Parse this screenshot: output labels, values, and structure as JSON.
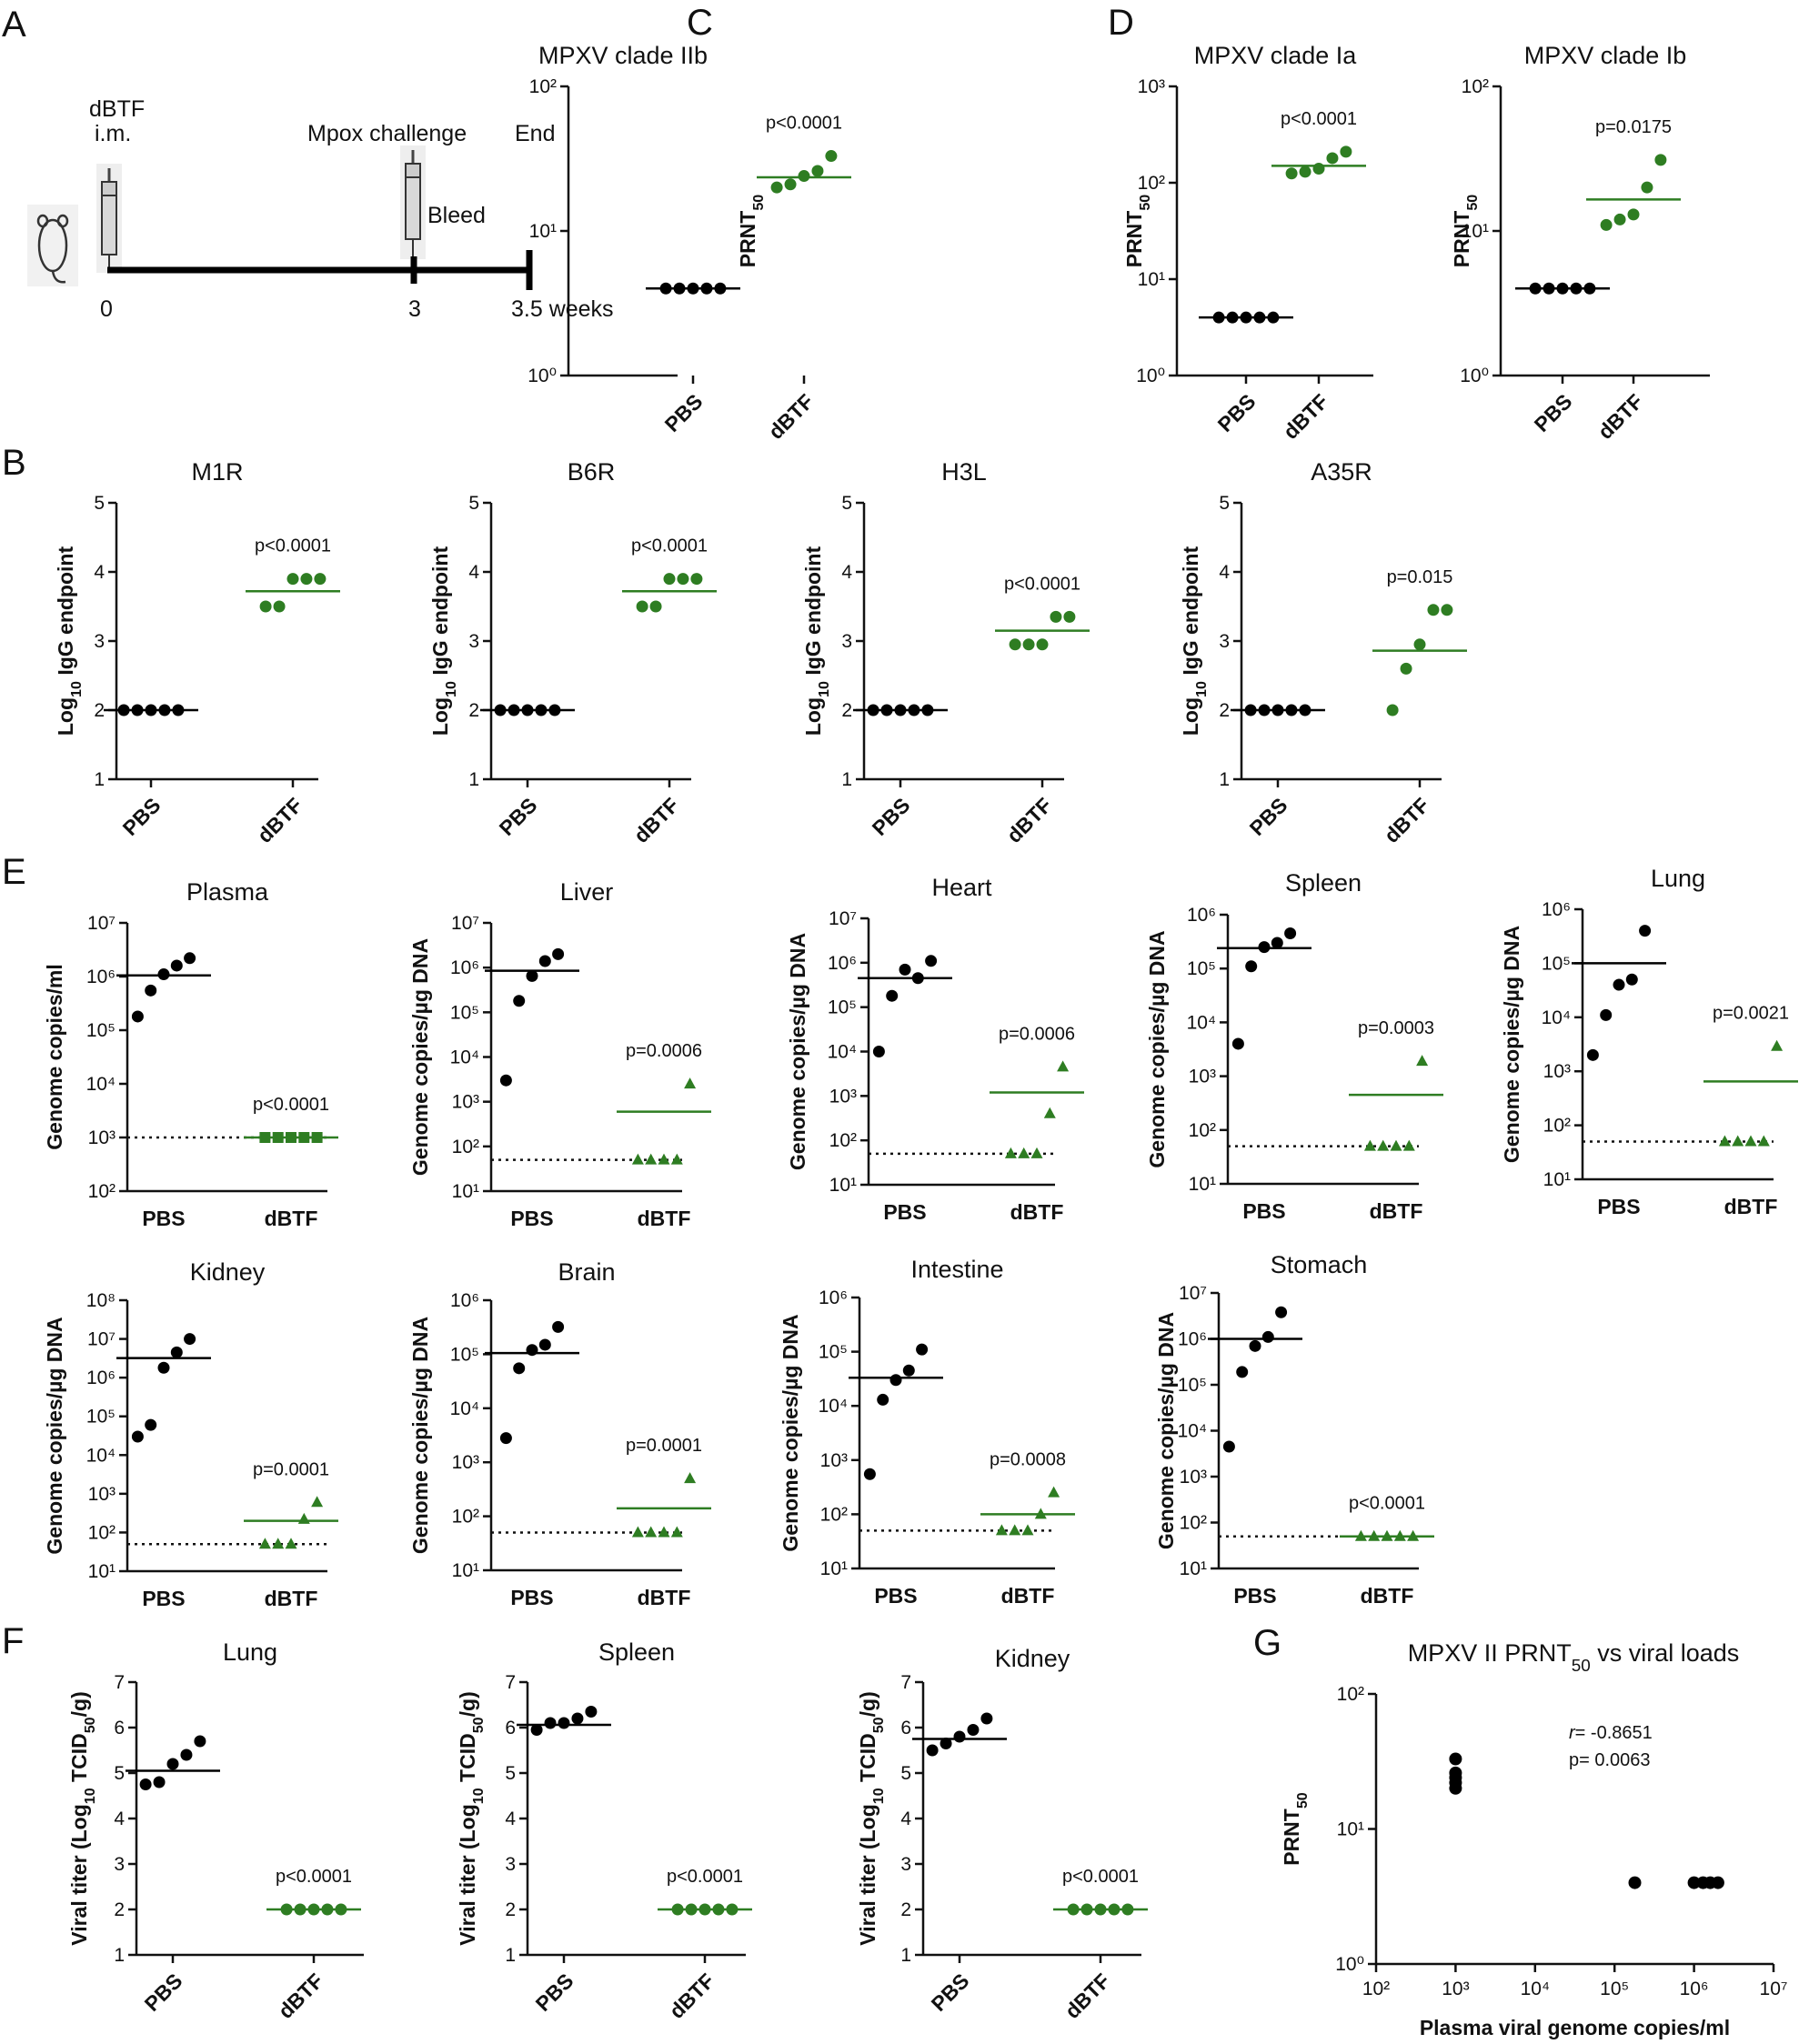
{
  "panel_labels": [
    "A",
    "B",
    "C",
    "D",
    "E",
    "F",
    "G"
  ],
  "timeline": {
    "dose_label_1": "dBTF",
    "dose_label_2": "i.m.",
    "challenge_label": "Mpox challenge",
    "end_label": "End",
    "bleed_label": "Bleed",
    "ticks": [
      "0",
      "3",
      "3.5 weeks"
    ]
  },
  "colors": {
    "pbs": "#000000",
    "dbtf": "#2e7d22"
  },
  "chart_data": [
    {
      "id": "C1",
      "type": "scatter",
      "title": "MPXV clade IIb",
      "ylabel": "PRNT",
      "ylabel_sub": "50",
      "yscale": "log",
      "ylim_exp": [
        0,
        2
      ],
      "categories": [
        "PBS",
        "dBTF"
      ],
      "series": [
        {
          "values": [
            4,
            4,
            4,
            4,
            4
          ],
          "mean": 4
        },
        {
          "values": [
            20,
            21,
            24,
            26,
            33
          ],
          "mean": 23.5
        }
      ],
      "pvalue": "p<0.0001"
    },
    {
      "id": "D1",
      "type": "scatter",
      "title": "MPXV clade Ia",
      "ylabel": "PRNT",
      "ylabel_sub": "50",
      "yscale": "log",
      "ylim_exp": [
        0,
        3
      ],
      "categories": [
        "PBS",
        "dBTF"
      ],
      "series": [
        {
          "values": [
            4,
            4,
            4,
            4,
            4
          ],
          "mean": 4
        },
        {
          "values": [
            125,
            130,
            140,
            180,
            210
          ],
          "mean": 150
        }
      ],
      "pvalue": "p<0.0001"
    },
    {
      "id": "D2",
      "type": "scatter",
      "title": "MPXV clade Ib",
      "ylabel": "PRNT",
      "ylabel_sub": "50",
      "yscale": "log",
      "ylim_exp": [
        0,
        2
      ],
      "categories": [
        "PBS",
        "dBTF"
      ],
      "series": [
        {
          "values": [
            4,
            4,
            4,
            4,
            4
          ],
          "mean": 4
        },
        {
          "values": [
            11,
            12,
            13,
            20,
            31
          ],
          "mean": 16.5
        }
      ],
      "pvalue": "p=0.0175"
    },
    {
      "id": "B1",
      "type": "scatter",
      "title": "M1R",
      "ylabel": "Log10 IgG endpoint",
      "yscale": "linear",
      "ylim": [
        1,
        5
      ],
      "categories": [
        "PBS",
        "dBTF"
      ],
      "series": [
        {
          "values": [
            2,
            2,
            2,
            2,
            2
          ],
          "mean": 2
        },
        {
          "values": [
            3.5,
            3.5,
            3.9,
            3.9,
            3.9
          ],
          "mean": 3.72
        }
      ],
      "pvalue": "p<0.0001"
    },
    {
      "id": "B2",
      "type": "scatter",
      "title": "B6R",
      "ylabel": "Log10 IgG endpoint",
      "yscale": "linear",
      "ylim": [
        1,
        5
      ],
      "categories": [
        "PBS",
        "dBTF"
      ],
      "series": [
        {
          "values": [
            2,
            2,
            2,
            2,
            2
          ],
          "mean": 2
        },
        {
          "values": [
            3.5,
            3.5,
            3.9,
            3.9,
            3.9
          ],
          "mean": 3.72
        }
      ],
      "pvalue": "p<0.0001"
    },
    {
      "id": "B3",
      "type": "scatter",
      "title": "H3L",
      "ylabel": "Log10 IgG endpoint",
      "yscale": "linear",
      "ylim": [
        1,
        5
      ],
      "categories": [
        "PBS",
        "dBTF"
      ],
      "series": [
        {
          "values": [
            2,
            2,
            2,
            2,
            2
          ],
          "mean": 2
        },
        {
          "values": [
            2.95,
            2.95,
            2.95,
            3.35,
            3.35
          ],
          "mean": 3.15
        }
      ],
      "pvalue": "p<0.0001"
    },
    {
      "id": "B4",
      "type": "scatter",
      "title": "A35R",
      "ylabel": "Log10 IgG endpoint",
      "yscale": "linear",
      "ylim": [
        1,
        5
      ],
      "categories": [
        "PBS",
        "dBTF"
      ],
      "series": [
        {
          "values": [
            2,
            2,
            2,
            2,
            2
          ],
          "mean": 2
        },
        {
          "values": [
            2.0,
            2.6,
            2.95,
            3.45,
            3.45
          ],
          "mean": 2.86
        }
      ],
      "pvalue": "p=0.015"
    },
    {
      "id": "E1",
      "type": "scatter",
      "title": "Plasma",
      "ylabel": "Genome copies/ml",
      "yscale": "log",
      "ylim_exp": [
        2,
        7
      ],
      "categories": [
        "PBS",
        "dBTF"
      ],
      "marker2": "square",
      "lod": 1000,
      "series": [
        {
          "values": [
            180000,
            550000,
            1100000,
            1600000,
            2200000
          ],
          "mean": 1050000
        },
        {
          "values": [
            1000,
            1000,
            1000,
            1000,
            1000
          ],
          "mean": 1000
        }
      ],
      "pvalue": "p<0.0001"
    },
    {
      "id": "E2",
      "type": "scatter",
      "title": "Liver",
      "ylabel": "Genome copies/µg DNA",
      "yscale": "log",
      "ylim_exp": [
        1,
        7
      ],
      "categories": [
        "PBS",
        "dBTF"
      ],
      "marker2": "triangle",
      "lod": 50,
      "series": [
        {
          "values": [
            3000,
            180000,
            650000,
            1400000,
            2000000
          ],
          "mean": 850000
        },
        {
          "values": [
            50,
            50,
            50,
            50,
            2500
          ],
          "mean": 600
        }
      ],
      "pvalue": "p=0.0006"
    },
    {
      "id": "E3",
      "type": "scatter",
      "title": "Heart",
      "ylabel": "Genome copies/µg DNA",
      "yscale": "log",
      "ylim_exp": [
        1,
        7
      ],
      "categories": [
        "PBS",
        "dBTF"
      ],
      "marker2": "triangle",
      "lod": 50,
      "series": [
        {
          "values": [
            10000,
            180000,
            700000,
            450000,
            1100000
          ],
          "mean": 450000
        },
        {
          "values": [
            50,
            50,
            50,
            400,
            4500
          ],
          "mean": 1200
        }
      ],
      "pvalue": "p=0.0006"
    },
    {
      "id": "E4",
      "type": "scatter",
      "title": "Spleen",
      "ylabel": "Genome copies/µg DNA",
      "yscale": "log",
      "ylim_exp": [
        1,
        6
      ],
      "categories": [
        "PBS",
        "dBTF"
      ],
      "marker2": "triangle",
      "lod": 50,
      "series": [
        {
          "values": [
            4000,
            110000,
            250000,
            300000,
            450000
          ],
          "mean": 240000
        },
        {
          "values": [
            50,
            50,
            50,
            50,
            1900
          ],
          "mean": 450
        }
      ],
      "pvalue": "p=0.0003"
    },
    {
      "id": "E5",
      "type": "scatter",
      "title": "Lung",
      "ylabel": "Genome copies/µg DNA",
      "yscale": "log",
      "ylim_exp": [
        1,
        6
      ],
      "categories": [
        "PBS",
        "dBTF"
      ],
      "marker2": "triangle",
      "lod": 50,
      "series": [
        {
          "values": [
            2000,
            11000,
            40000,
            50000,
            400000
          ],
          "mean": 100000
        },
        {
          "values": [
            50,
            50,
            50,
            50,
            2900
          ],
          "mean": 650
        }
      ],
      "pvalue": "p=0.0021"
    },
    {
      "id": "E6",
      "type": "scatter",
      "title": "Kidney",
      "ylabel": "Genome copies/µg DNA",
      "yscale": "log",
      "ylim_exp": [
        1,
        8
      ],
      "categories": [
        "PBS",
        "dBTF"
      ],
      "marker2": "triangle",
      "lod": 50,
      "series": [
        {
          "values": [
            30000,
            60000,
            1800000,
            4500000,
            10000000
          ],
          "mean": 3200000
        },
        {
          "values": [
            50,
            50,
            50,
            220,
            600
          ],
          "mean": 200
        }
      ],
      "pvalue": "p=0.0001"
    },
    {
      "id": "E7",
      "type": "scatter",
      "title": "Brain",
      "ylabel": "Genome copies/µg DNA",
      "yscale": "log",
      "ylim_exp": [
        1,
        6
      ],
      "categories": [
        "PBS",
        "dBTF"
      ],
      "marker2": "triangle",
      "lod": 50,
      "series": [
        {
          "values": [
            2800,
            55000,
            120000,
            150000,
            320000
          ],
          "mean": 105000
        },
        {
          "values": [
            50,
            50,
            50,
            50,
            500
          ],
          "mean": 140
        }
      ],
      "pvalue": "p=0.0001"
    },
    {
      "id": "E8",
      "type": "scatter",
      "title": "Intestine",
      "ylabel": "Genome copies/µg DNA",
      "yscale": "log",
      "ylim_exp": [
        1,
        6
      ],
      "categories": [
        "PBS",
        "dBTF"
      ],
      "marker2": "triangle",
      "lod": 50,
      "series": [
        {
          "values": [
            550,
            13000,
            30000,
            45000,
            110000
          ],
          "mean": 33000
        },
        {
          "values": [
            50,
            50,
            50,
            100,
            250
          ],
          "mean": 100
        }
      ],
      "pvalue": "p=0.0008"
    },
    {
      "id": "E9",
      "type": "scatter",
      "title": "Stomach",
      "ylabel": "Genome copies/µg DNA",
      "yscale": "log",
      "ylim_exp": [
        1,
        7
      ],
      "categories": [
        "PBS",
        "dBTF"
      ],
      "marker2": "triangle",
      "lod": 50,
      "series": [
        {
          "values": [
            4500,
            190000,
            700000,
            1100000,
            3800000
          ],
          "mean": 1000000
        },
        {
          "values": [
            50,
            50,
            50,
            50,
            50
          ],
          "mean": 50
        }
      ],
      "pvalue": "p<0.0001"
    },
    {
      "id": "F1",
      "type": "scatter",
      "title": "Lung",
      "ylabel": "Viral titer (Log10 TCID50/g)",
      "yscale": "linear",
      "ylim": [
        1,
        7
      ],
      "categories": [
        "PBS",
        "dBTF"
      ],
      "series": [
        {
          "values": [
            4.75,
            4.8,
            5.2,
            5.4,
            5.7
          ],
          "mean": 5.05
        },
        {
          "values": [
            2,
            2,
            2,
            2,
            2
          ],
          "mean": 2
        }
      ],
      "pvalue": "p<0.0001"
    },
    {
      "id": "F2",
      "type": "scatter",
      "title": "Spleen",
      "ylabel": "Viral titer (Log10 TCID50/g)",
      "yscale": "linear",
      "ylim": [
        1,
        7
      ],
      "categories": [
        "PBS",
        "dBTF"
      ],
      "series": [
        {
          "values": [
            5.95,
            6.1,
            6.1,
            6.2,
            6.35
          ],
          "mean": 6.06
        },
        {
          "values": [
            2,
            2,
            2,
            2,
            2
          ],
          "mean": 2
        }
      ],
      "pvalue": "p<0.0001"
    },
    {
      "id": "F3",
      "type": "scatter",
      "title": "Kidney",
      "ylabel": "Viral titer (Log10 TCID50/g)",
      "yscale": "linear",
      "ylim": [
        1,
        7
      ],
      "categories": [
        "PBS",
        "dBTF"
      ],
      "series": [
        {
          "values": [
            5.5,
            5.65,
            5.8,
            5.95,
            6.2
          ],
          "mean": 5.75
        },
        {
          "values": [
            2,
            2,
            2,
            2,
            2
          ],
          "mean": 2
        }
      ],
      "pvalue": "p<0.0001"
    },
    {
      "id": "G",
      "type": "scatter",
      "title": "MPXV II PRNT",
      "title_sub": "50",
      "title_rest": " vs viral loads",
      "ylabel": "PRNT",
      "ylabel_sub": "50",
      "xlabel": "Plasma viral genome copies/ml",
      "xscale": "log",
      "yscale": "log",
      "xlim_exp": [
        2,
        7
      ],
      "ylim_exp": [
        0,
        2
      ],
      "points": [
        [
          1000,
          20
        ],
        [
          1000,
          22
        ],
        [
          1000,
          24
        ],
        [
          1000,
          26
        ],
        [
          1000,
          33
        ],
        [
          180000,
          4
        ],
        [
          1000000,
          4
        ],
        [
          1300000,
          4
        ],
        [
          1600000,
          4
        ],
        [
          2000000,
          4
        ]
      ],
      "stat_r": "= -0.8651",
      "stat_r_label": "r",
      "stat_p": "p= 0.0063"
    }
  ]
}
